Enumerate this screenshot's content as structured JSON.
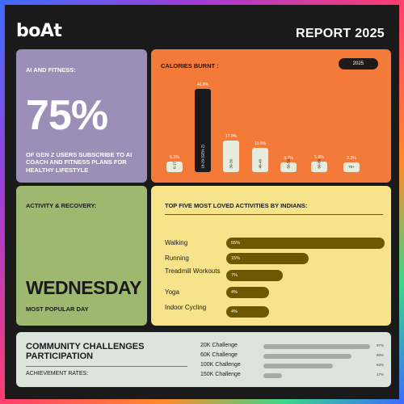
{
  "brand": {
    "logo": "boAt"
  },
  "header": {
    "title": "REPORT 2025"
  },
  "ai_card": {
    "label": "AI AND FITNESS:",
    "percent": "75%",
    "description": "OF GEN Z USERS SUBSCRIBE TO AI COACH AND FITNESS PLANS FOR HEALTHY LIFESTYLE"
  },
  "calories_card": {
    "label": "CALORIES BURNT :",
    "year": "2025"
  },
  "chart_data": {
    "type": "bar",
    "title": "CALORIES BURNT :",
    "categories": [
      "0-17",
      "18-29 (GEN Z)",
      "30-39",
      "40-49",
      "50-59",
      "60-69",
      "70+"
    ],
    "values": [
      6.1,
      46.8,
      17.9,
      13.5,
      3.7,
      5.9,
      2.3
    ],
    "value_labels": [
      "6.1%",
      "46.8%",
      "17.9%",
      "13.5%",
      "3.7%",
      "5.9%",
      "2.3%"
    ],
    "highlight_index": 1,
    "ylim": [
      0,
      50
    ],
    "colors": {
      "bar": "#e7ecdc",
      "highlight": "#1a1a1a",
      "background": "#f47a3a"
    }
  },
  "activity_card": {
    "label": "ACTIVITY & RECOVERY:",
    "day": "WEDNESDAY",
    "subtitle": "MOST POPULAR DAY"
  },
  "top_activities": {
    "label": "TOP FIVE MOST LOVED ACTIVITIES BY INDIANS:",
    "items": [
      {
        "name": "Walking",
        "percent": "55%",
        "value": 55
      },
      {
        "name": "Running",
        "percent": "15%",
        "value": 15
      },
      {
        "name": "Treadmill Workouts",
        "percent": "7%",
        "value": 7
      },
      {
        "name": "Yoga",
        "percent": "4%",
        "value": 4
      },
      {
        "name": "Indoor Cycling",
        "percent": "4%",
        "value": 4
      }
    ]
  },
  "community": {
    "title": "COMMUNITY CHALLENGES PARTICIPATION",
    "subtitle": "ACHIEVEMENT RATES:",
    "challenges": [
      {
        "name": "20K Challenge",
        "percent": "97%",
        "value": 97
      },
      {
        "name": "60K Challenge",
        "percent": "80%",
        "value": 80
      },
      {
        "name": "100K Challenge",
        "percent": "63%",
        "value": 63
      },
      {
        "name": "150K Challenge",
        "percent": "17%",
        "value": 17
      }
    ]
  }
}
